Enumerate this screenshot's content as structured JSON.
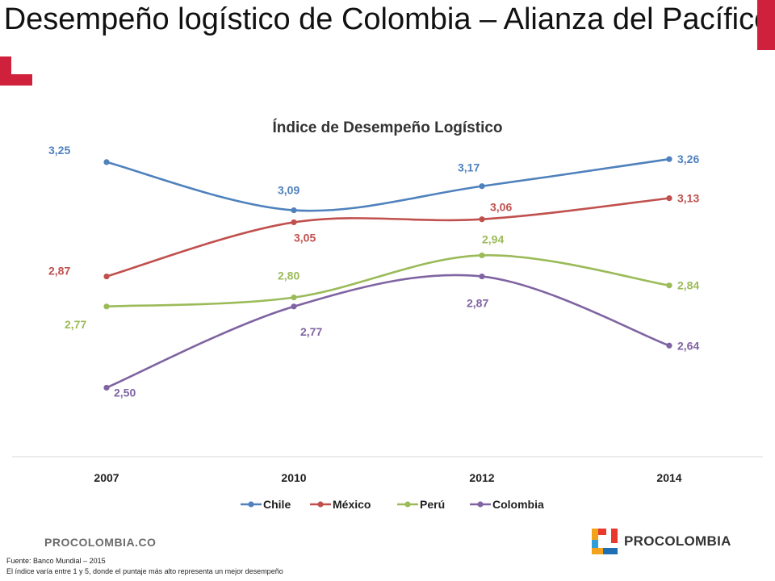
{
  "slide": {
    "title": "Desempeño logístico de Colombia – Alianza del Pacífico",
    "footer_brand": "PROCOLOMBIA.CO",
    "logo_text": "PROCOLOMBIA",
    "source": "Fuente: Banco Mundial – 2015",
    "note": "El índice varía entre 1 y 5, donde el puntaje más alto representa un mejor desempeño",
    "accent_color": "#d0213c"
  },
  "chart_data": {
    "type": "line",
    "title": "Índice de Desempeño Logístico",
    "categories": [
      "2007",
      "2010",
      "2012",
      "2014"
    ],
    "ylim": [
      2.3,
      3.4
    ],
    "grid": false,
    "legend_position": "bottom",
    "smooth": true,
    "series": [
      {
        "name": "Chile",
        "color": "#4f81bd",
        "values": [
          3.25,
          3.09,
          3.17,
          3.26
        ],
        "labels": [
          "3,25",
          "3,09",
          "3,17",
          "3,26"
        ]
      },
      {
        "name": "México",
        "color": "#c0504d",
        "values": [
          2.87,
          3.05,
          3.06,
          3.13
        ],
        "labels": [
          "2,87",
          "3,05",
          "3,06",
          "3,13"
        ]
      },
      {
        "name": "Perú",
        "color": "#9bbb59",
        "values": [
          2.77,
          2.8,
          2.94,
          2.84
        ],
        "labels": [
          "2,77",
          "2,80",
          "2,94",
          "2,84"
        ]
      },
      {
        "name": "Colombia",
        "color": "#8064a2",
        "values": [
          2.5,
          2.77,
          2.87,
          2.64
        ],
        "labels": [
          "2,50",
          "2,77",
          "2,87",
          "2,64"
        ]
      }
    ]
  }
}
